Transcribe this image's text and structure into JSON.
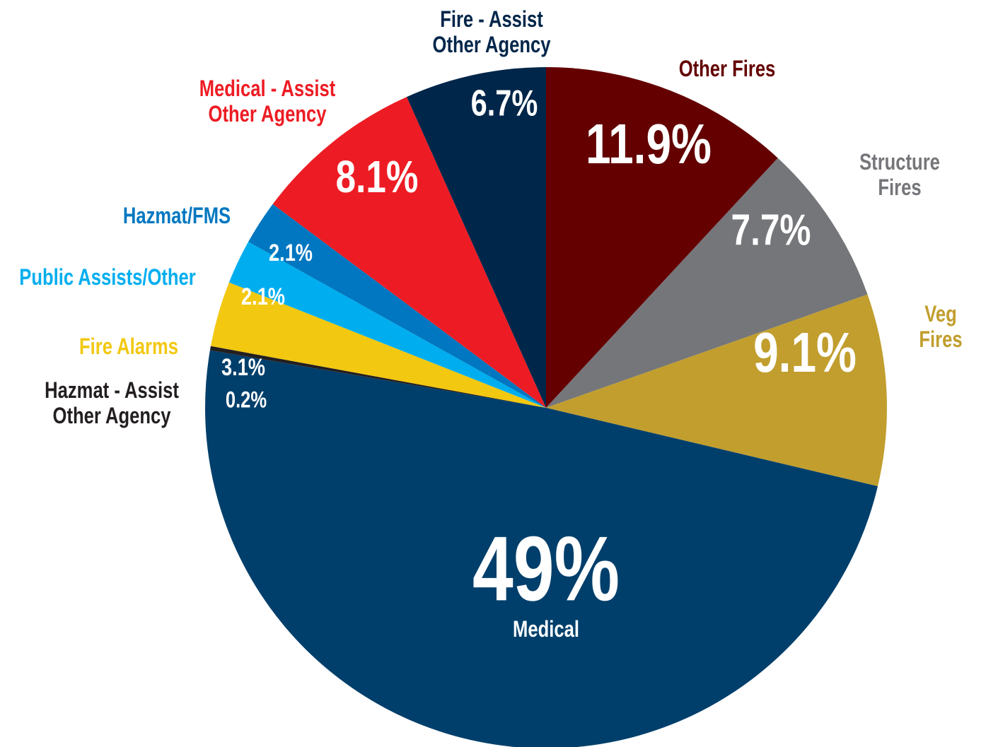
{
  "chart_data": {
    "type": "pie",
    "categories": [
      "Other Fires",
      "Structure Fires",
      "Veg Fires",
      "Medical",
      "Hazmat - Assist\nOther Agency",
      "Fire Alarms",
      "Public Assists/Other",
      "Hazmat/FMS",
      "Medical - Assist\nOther Agency",
      "Fire - Assist\nOther Agency"
    ],
    "values": [
      11.9,
      7.7,
      9.1,
      49,
      0.2,
      3.1,
      2.1,
      2.1,
      8.1,
      6.7
    ],
    "value_labels": [
      "11.9%",
      "7.7%",
      "9.1%",
      "49%",
      "0.2%",
      "3.1%",
      "2.1%",
      "2.1%",
      "8.1%",
      "6.7%"
    ],
    "colors": [
      "#640000",
      "#75767a",
      "#c19e2e",
      "#003f6b",
      "#231f20",
      "#f2c811",
      "#00aeef",
      "#0077c0",
      "#ed1c24",
      "#00264a"
    ]
  }
}
